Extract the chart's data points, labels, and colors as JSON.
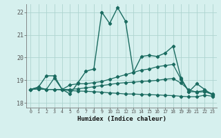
{
  "xlabel": "Humidex (Indice chaleur)",
  "xlim": [
    -0.5,
    23.5
  ],
  "ylim": [
    17.8,
    22.35
  ],
  "yticks": [
    18,
    19,
    20,
    21,
    22
  ],
  "xticks": [
    0,
    1,
    2,
    3,
    4,
    5,
    6,
    7,
    8,
    9,
    10,
    11,
    12,
    13,
    14,
    15,
    16,
    17,
    18,
    19,
    20,
    21,
    22,
    23
  ],
  "bg_color": "#d6f0ee",
  "line_color": "#1a6b60",
  "grid_color": "#aed4cf",
  "lines": [
    [
      18.6,
      18.7,
      19.2,
      19.2,
      18.6,
      18.4,
      18.9,
      19.4,
      19.5,
      22.0,
      21.5,
      22.2,
      21.6,
      19.35,
      20.05,
      20.1,
      20.05,
      20.2,
      20.5,
      19.1,
      18.5,
      18.85,
      18.6,
      18.35
    ],
    [
      18.6,
      18.7,
      18.6,
      19.1,
      18.6,
      18.8,
      18.85,
      18.85,
      18.9,
      18.95,
      19.05,
      19.15,
      19.25,
      19.35,
      19.45,
      19.5,
      19.6,
      19.65,
      19.7,
      19.05,
      18.5,
      18.5,
      18.55,
      18.4
    ],
    [
      18.6,
      18.62,
      18.6,
      18.6,
      18.58,
      18.55,
      18.53,
      18.52,
      18.5,
      18.48,
      18.45,
      18.43,
      18.4,
      18.4,
      18.38,
      18.37,
      18.36,
      18.34,
      18.33,
      18.3,
      18.28,
      18.28,
      18.35,
      18.3
    ],
    [
      18.6,
      18.63,
      18.6,
      18.6,
      18.6,
      18.6,
      18.63,
      18.67,
      18.72,
      18.77,
      18.82,
      18.87,
      18.9,
      18.92,
      18.95,
      18.97,
      19.0,
      19.05,
      19.08,
      18.88,
      18.58,
      18.48,
      18.5,
      18.38
    ]
  ]
}
